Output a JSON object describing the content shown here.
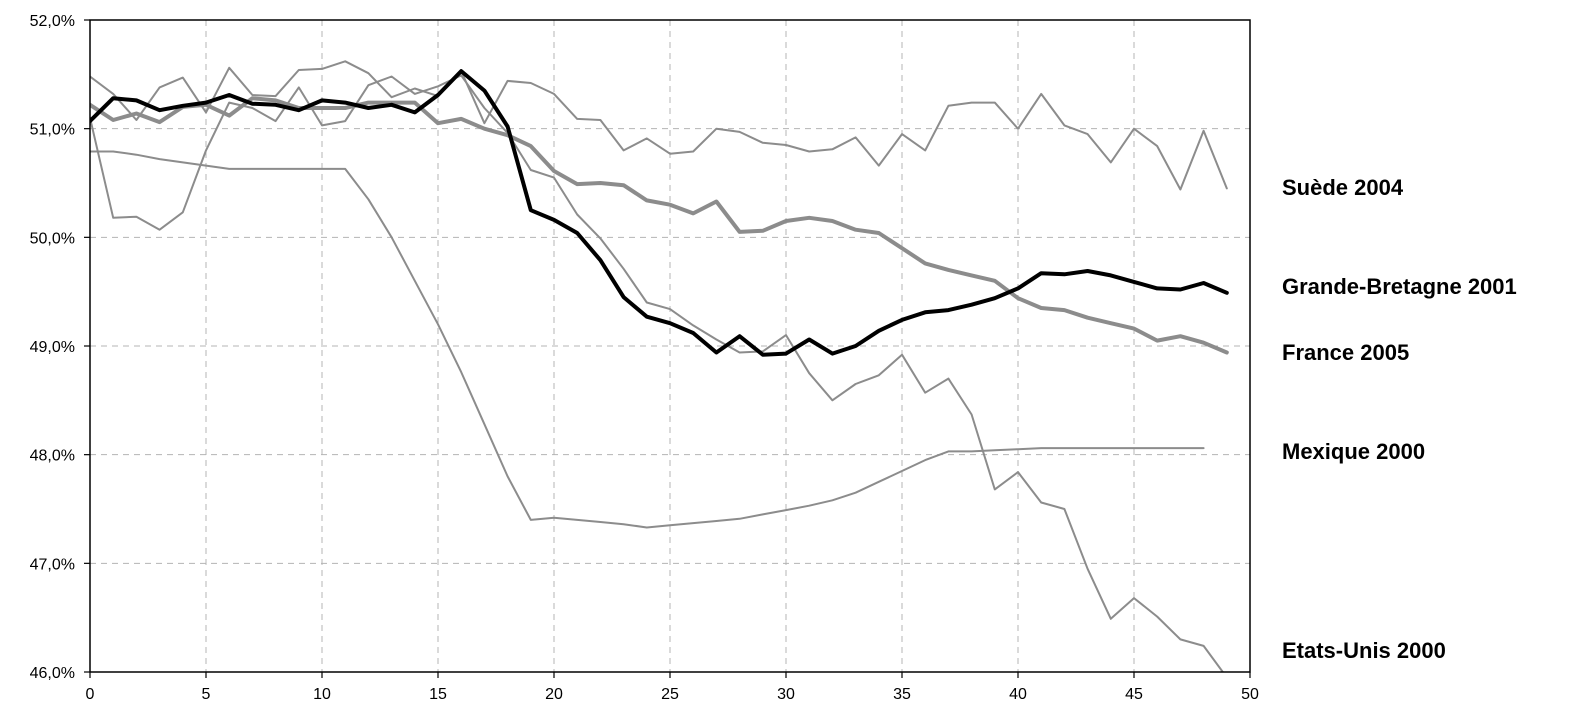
{
  "chart_data": {
    "type": "line",
    "title": "",
    "xlabel": "",
    "ylabel": "",
    "xlim": [
      0,
      50
    ],
    "ylim": [
      46.0,
      52.0
    ],
    "x_ticks": [
      0,
      5,
      10,
      15,
      20,
      25,
      30,
      35,
      40,
      45,
      50
    ],
    "x_tick_labels": [
      "0",
      "5",
      "10",
      "15",
      "20",
      "25",
      "30",
      "35",
      "40",
      "45",
      "50"
    ],
    "y_ticks": [
      46.0,
      47.0,
      48.0,
      49.0,
      50.0,
      51.0,
      52.0
    ],
    "y_tick_labels": [
      "46,0%",
      "47,0%",
      "48,0%",
      "49,0%",
      "50,0%",
      "51,0%",
      "52,0%"
    ],
    "grid": true,
    "legend": "right (labels beside line ends)",
    "series": [
      {
        "name": "Suède 2004",
        "color": "#8c8c8c",
        "style": "thin",
        "x": [
          0,
          1,
          2,
          3,
          4,
          5,
          6,
          7,
          8,
          9,
          10,
          11,
          12,
          13,
          14,
          15,
          16,
          17,
          18,
          19,
          20,
          21,
          22,
          23,
          24,
          25,
          26,
          27,
          28,
          29,
          30,
          31,
          32,
          33,
          34,
          35,
          36,
          37,
          38,
          39,
          40,
          41,
          42,
          43,
          44,
          45,
          46,
          47,
          48,
          49
        ],
        "values": [
          51.48,
          51.32,
          51.08,
          51.38,
          51.47,
          51.15,
          51.56,
          51.31,
          51.3,
          51.54,
          51.55,
          51.62,
          51.51,
          51.29,
          51.37,
          51.3,
          51.53,
          51.05,
          51.44,
          51.42,
          51.32,
          51.09,
          51.08,
          50.8,
          50.91,
          50.77,
          50.79,
          51.0,
          50.97,
          50.87,
          50.85,
          50.79,
          50.81,
          50.92,
          50.66,
          50.95,
          50.8,
          51.21,
          51.24,
          51.24,
          51.0,
          51.32,
          51.03,
          50.95,
          50.69,
          51.0,
          50.84,
          50.44,
          50.98,
          50.45
        ]
      },
      {
        "name": "Grande-Bretagne 2001",
        "color": "#000000",
        "style": "bold",
        "x": [
          0,
          1,
          2,
          3,
          4,
          5,
          6,
          7,
          8,
          9,
          10,
          11,
          12,
          13,
          14,
          15,
          16,
          17,
          18,
          19,
          20,
          21,
          22,
          23,
          24,
          25,
          26,
          27,
          28,
          29,
          30,
          31,
          32,
          33,
          34,
          35,
          36,
          37,
          38,
          39,
          40,
          41,
          42,
          43,
          44,
          45,
          46,
          47,
          48,
          49
        ],
        "values": [
          51.07,
          51.28,
          51.26,
          51.17,
          51.21,
          51.24,
          51.31,
          51.23,
          51.22,
          51.17,
          51.26,
          51.24,
          51.19,
          51.22,
          51.15,
          51.31,
          51.53,
          51.35,
          51.02,
          50.25,
          50.16,
          50.04,
          49.79,
          49.45,
          49.27,
          49.21,
          49.12,
          48.94,
          49.09,
          48.92,
          48.93,
          49.06,
          48.93,
          49.0,
          49.14,
          49.24,
          49.31,
          49.33,
          49.38,
          49.44,
          49.53,
          49.67,
          49.66,
          49.69,
          49.65,
          49.59,
          49.53,
          49.52,
          49.58,
          49.49
        ]
      },
      {
        "name": "France 2005",
        "color": "#8c8c8c",
        "style": "bold",
        "x": [
          0,
          1,
          2,
          3,
          4,
          5,
          6,
          7,
          8,
          9,
          10,
          11,
          12,
          13,
          14,
          15,
          16,
          17,
          18,
          19,
          20,
          21,
          22,
          23,
          24,
          25,
          26,
          27,
          28,
          29,
          30,
          31,
          32,
          33,
          34,
          35,
          36,
          37,
          38,
          39,
          40,
          41,
          42,
          43,
          44,
          45,
          46,
          47,
          48,
          49
        ],
        "values": [
          51.22,
          51.08,
          51.14,
          51.06,
          51.2,
          51.22,
          51.12,
          51.28,
          51.26,
          51.19,
          51.19,
          51.19,
          51.24,
          51.24,
          51.24,
          51.05,
          51.09,
          51.0,
          50.94,
          50.84,
          50.61,
          50.49,
          50.5,
          50.48,
          50.34,
          50.3,
          50.22,
          50.33,
          50.05,
          50.06,
          50.15,
          50.18,
          50.15,
          50.07,
          50.04,
          49.9,
          49.76,
          49.7,
          49.65,
          49.6,
          49.44,
          49.35,
          49.33,
          49.26,
          49.21,
          49.16,
          49.05,
          49.09,
          49.03,
          48.94
        ]
      },
      {
        "name": "Mexique 2000",
        "color": "#8c8c8c",
        "style": "thin",
        "x": [
          0,
          1,
          2,
          3,
          4,
          5,
          6,
          7,
          8,
          9,
          10,
          11,
          12,
          13,
          14,
          15,
          16,
          17,
          18,
          19,
          20,
          21,
          22,
          23,
          24,
          25,
          26,
          27,
          28,
          29,
          30,
          31,
          32,
          33,
          34,
          35,
          36,
          37,
          38,
          39,
          40,
          41,
          42,
          43,
          44,
          45,
          46,
          47,
          48
        ],
        "values": [
          50.79,
          50.79,
          50.76,
          50.72,
          50.69,
          50.66,
          50.63,
          50.63,
          50.63,
          50.63,
          50.63,
          50.63,
          50.35,
          50.0,
          49.6,
          49.2,
          48.76,
          48.28,
          47.8,
          47.4,
          47.42,
          47.4,
          47.38,
          47.36,
          47.33,
          47.35,
          47.37,
          47.39,
          47.41,
          47.45,
          47.49,
          47.53,
          47.58,
          47.65,
          47.75,
          47.85,
          47.95,
          48.03,
          48.03,
          48.04,
          48.05,
          48.06,
          48.06,
          48.06,
          48.06,
          48.06,
          48.06,
          48.06,
          48.06
        ]
      },
      {
        "name": "Etats-Unis 2000",
        "color": "#8c8c8c",
        "style": "thin",
        "x": [
          0,
          1,
          2,
          3,
          4,
          5,
          6,
          7,
          8,
          9,
          10,
          11,
          12,
          13,
          14,
          15,
          16,
          17,
          18,
          19,
          20,
          21,
          22,
          23,
          24,
          25,
          26,
          27,
          28,
          29,
          30,
          31,
          32,
          33,
          34,
          35,
          36,
          37,
          38,
          39,
          40,
          41,
          42,
          43,
          44,
          45,
          46,
          47,
          48,
          49
        ],
        "values": [
          51.1,
          50.18,
          50.19,
          50.07,
          50.23,
          50.8,
          51.24,
          51.19,
          51.07,
          51.38,
          51.03,
          51.07,
          51.4,
          51.48,
          51.32,
          51.39,
          51.49,
          51.19,
          50.96,
          50.62,
          50.55,
          50.21,
          49.99,
          49.71,
          49.4,
          49.34,
          49.19,
          49.06,
          48.94,
          48.95,
          49.1,
          48.75,
          48.5,
          48.65,
          48.73,
          48.92,
          48.57,
          48.7,
          48.37,
          47.68,
          47.84,
          47.56,
          47.5,
          46.95,
          46.49,
          46.68,
          46.51,
          46.3,
          46.24,
          45.95
        ]
      }
    ]
  }
}
